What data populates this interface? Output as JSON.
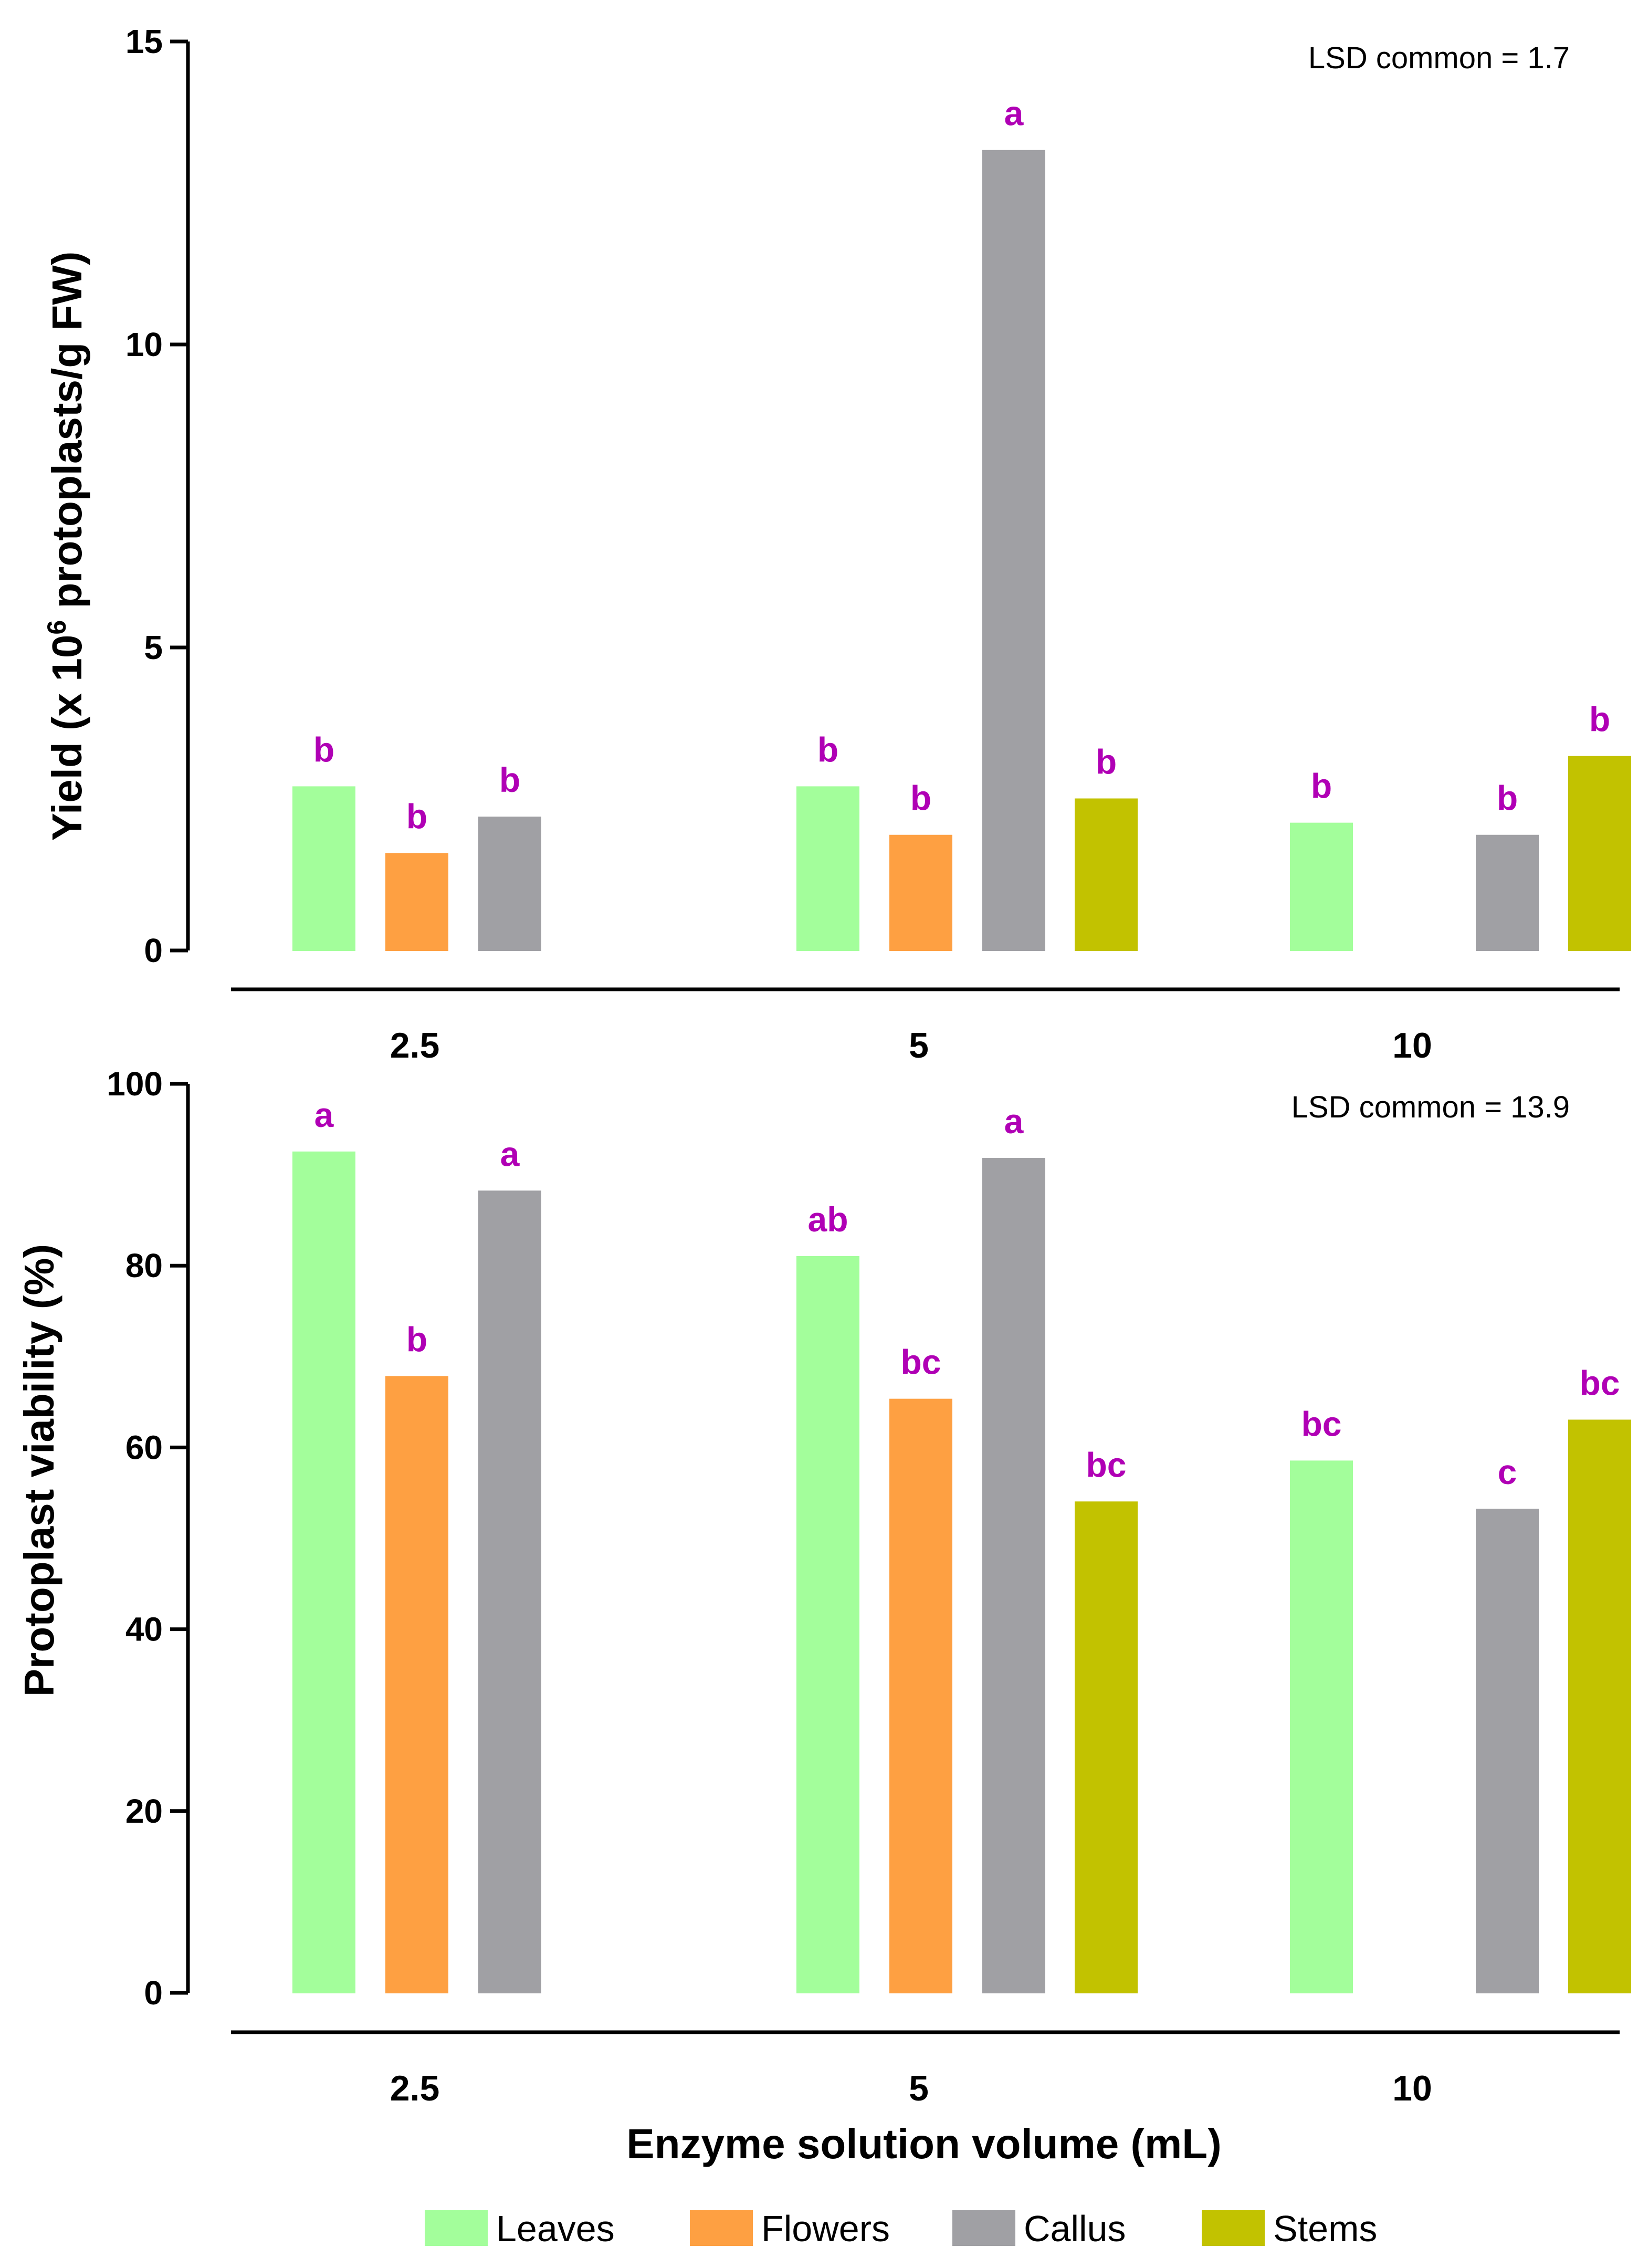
{
  "chart_data": [
    {
      "type": "bar",
      "categories": [
        "2.5",
        "5",
        "10"
      ],
      "ylabel_parts": [
        "Yield (x 10",
        "6",
        " protoplasts/g FW)"
      ],
      "ylim": [
        0,
        15
      ],
      "yticks": [
        "0",
        "5",
        "10",
        "15"
      ],
      "annotation": "LSD common = 1.7",
      "series": [
        {
          "name": "Leaves",
          "color": "#a3fe9b",
          "values": [
            2.7,
            2.7,
            2.1
          ],
          "labels": [
            "b",
            "b",
            "b"
          ]
        },
        {
          "name": "Flowers",
          "color": "#fea042",
          "values": [
            1.6,
            1.9,
            null
          ],
          "labels": [
            "b",
            "b",
            ""
          ]
        },
        {
          "name": "Callus",
          "color": "#a0a0a4",
          "values": [
            2.2,
            13.2,
            1.9
          ],
          "labels": [
            "b",
            "a",
            "b"
          ]
        },
        {
          "name": "Stems",
          "color": "#c2c200",
          "values": [
            null,
            2.5,
            3.2
          ],
          "labels": [
            "",
            "b",
            "b"
          ]
        }
      ]
    },
    {
      "type": "bar",
      "categories": [
        "2.5",
        "5",
        "10"
      ],
      "ylabel": "Protoplast viability (%)",
      "xlabel": "Enzyme solution volume (mL)",
      "ylim": [
        0,
        100
      ],
      "yticks": [
        "0",
        "20",
        "40",
        "60",
        "80",
        "100"
      ],
      "annotation": "LSD common = 13.9",
      "series": [
        {
          "name": "Leaves",
          "color": "#a3fe9b",
          "values": [
            92.5,
            81.0,
            58.5
          ],
          "labels": [
            "a",
            "ab",
            "bc"
          ]
        },
        {
          "name": "Flowers",
          "color": "#fea042",
          "values": [
            67.8,
            65.3,
            null
          ],
          "labels": [
            "b",
            "bc",
            ""
          ]
        },
        {
          "name": "Callus",
          "color": "#a0a0a4",
          "values": [
            88.2,
            91.8,
            53.2
          ],
          "labels": [
            "a",
            "a",
            "c"
          ]
        },
        {
          "name": "Stems",
          "color": "#c2c200",
          "values": [
            null,
            54.0,
            63.0
          ],
          "labels": [
            "",
            "bc",
            "bc"
          ]
        }
      ]
    }
  ],
  "legend": [
    {
      "name": "Leaves",
      "color": "#a3fe9b"
    },
    {
      "name": "Flowers",
      "color": "#fea042"
    },
    {
      "name": "Callus",
      "color": "#a0a0a4"
    },
    {
      "name": "Stems",
      "color": "#c2c200"
    }
  ],
  "colors": {
    "significance_label": "#b000b5",
    "axis": "#000000"
  }
}
